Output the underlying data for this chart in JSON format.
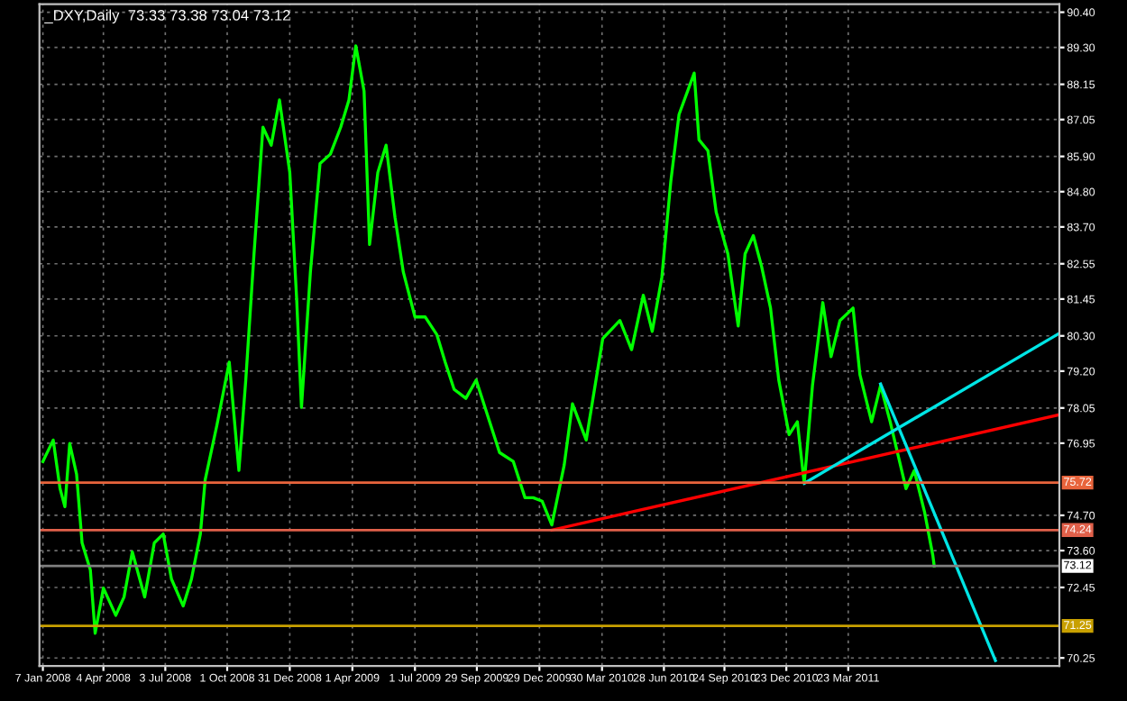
{
  "chart_data": {
    "type": "line",
    "title": "_DXY,Daily  73.33 73.38 73.04 73.12",
    "x": [
      "2008-01-07",
      "2008-01-22",
      "2008-02-01",
      "2008-02-08",
      "2008-02-15",
      "2008-02-25",
      "2008-03-04",
      "2008-03-16",
      "2008-03-23",
      "2008-04-04",
      "2008-04-22",
      "2008-05-04",
      "2008-05-16",
      "2008-06-03",
      "2008-06-17",
      "2008-06-30",
      "2008-07-12",
      "2008-07-29",
      "2008-08-10",
      "2008-08-23",
      "2008-08-30",
      "2008-09-16",
      "2008-10-04",
      "2008-10-18",
      "2008-10-28",
      "2008-11-09",
      "2008-11-22",
      "2008-12-04",
      "2008-12-16",
      "2008-12-31",
      "2009-01-10",
      "2009-01-17",
      "2009-01-30",
      "2009-02-13",
      "2009-02-28",
      "2009-03-15",
      "2009-03-27",
      "2009-04-06",
      "2009-04-18",
      "2009-04-26",
      "2009-05-08",
      "2009-05-20",
      "2009-06-02",
      "2009-06-14",
      "2009-07-01",
      "2009-07-16",
      "2009-08-02",
      "2009-08-14",
      "2009-08-27",
      "2009-09-13",
      "2009-09-28",
      "2009-10-15",
      "2009-11-01",
      "2009-11-21",
      "2009-12-08",
      "2009-12-20",
      "2010-01-02",
      "2010-01-16",
      "2010-02-03",
      "2010-02-15",
      "2010-03-07",
      "2010-03-31",
      "2010-04-25",
      "2010-05-12",
      "2010-05-29",
      "2010-06-11",
      "2010-06-25",
      "2010-07-08",
      "2010-07-20",
      "2010-08-11",
      "2010-08-18",
      "2010-08-31",
      "2010-09-12",
      "2010-09-29",
      "2010-10-14",
      "2010-10-24",
      "2010-11-05",
      "2010-11-17",
      "2010-11-30",
      "2010-12-12",
      "2010-12-27",
      "2011-01-08",
      "2011-01-18",
      "2011-01-30",
      "2011-02-14",
      "2011-02-26",
      "2011-03-11",
      "2011-03-30",
      "2011-04-09",
      "2011-04-26",
      "2011-05-09",
      "2011-05-23",
      "2011-06-15",
      "2011-06-27",
      "2011-07-12",
      "2011-07-24",
      "2011-07-26"
    ],
    "series": [
      {
        "color": "#00ff00",
        "values": [
          76.38,
          77.05,
          75.53,
          74.97,
          76.94,
          75.98,
          73.84,
          73.0,
          71.02,
          72.43,
          71.58,
          72.15,
          73.56,
          72.15,
          73.84,
          74.12,
          72.71,
          71.87,
          72.71,
          74.12,
          75.81,
          77.51,
          79.48,
          76.1,
          78.92,
          82.86,
          86.81,
          86.25,
          87.66,
          85.4,
          81.45,
          78.07,
          82.3,
          85.68,
          85.97,
          86.81,
          87.66,
          89.35,
          87.94,
          83.15,
          85.4,
          86.25,
          84.0,
          82.3,
          80.89,
          80.89,
          80.33,
          79.48,
          78.63,
          78.35,
          78.92,
          77.79,
          76.66,
          76.38,
          75.25,
          75.25,
          75.14,
          74.4,
          76.27,
          78.18,
          77.05,
          80.21,
          80.78,
          79.87,
          81.57,
          80.44,
          82.13,
          85.12,
          87.21,
          88.5,
          86.42,
          86.08,
          84.16,
          82.86,
          80.61,
          82.86,
          83.43,
          82.47,
          81.17,
          78.92,
          77.22,
          77.62,
          75.7,
          78.75,
          81.34,
          79.65,
          80.78,
          81.17,
          79.09,
          77.62,
          78.75,
          77.62,
          75.53,
          76.1,
          74.8,
          73.45,
          73.12
        ]
      },
      {
        "color": "#ff0000",
        "x": [
          "2010-01-16",
          "2012-01-24"
        ],
        "values": [
          74.24,
          77.84
        ]
      },
      {
        "color": "#00e5e5",
        "x": [
          "2011-01-18",
          "2012-01-24"
        ],
        "values": [
          75.7,
          80.38
        ]
      },
      {
        "color": "#00e5e5",
        "x": [
          "2011-05-09",
          "2011-10-23"
        ],
        "values": [
          78.8,
          70.17
        ]
      }
    ],
    "xlim": [
      "2008-01-02",
      "2012-01-24"
    ],
    "xticks": [
      {
        "value": "2008-01-07",
        "label": "7 Jan 2008"
      },
      {
        "value": "2008-04-04",
        "label": "4 Apr 2008"
      },
      {
        "value": "2008-07-03",
        "label": "3 Jul 2008"
      },
      {
        "value": "2008-10-01",
        "label": "1 Oct 2008"
      },
      {
        "value": "2008-12-31",
        "label": "31 Dec 2008"
      },
      {
        "value": "2009-04-01",
        "label": "1 Apr 2009"
      },
      {
        "value": "2009-07-01",
        "label": "1 Jul 2009"
      },
      {
        "value": "2009-09-29",
        "label": "29 Sep 2009"
      },
      {
        "value": "2009-12-29",
        "label": "29 Dec 2009"
      },
      {
        "value": "2010-03-30",
        "label": "30 Mar 2010"
      },
      {
        "value": "2010-06-28",
        "label": "28 Jun 2010"
      },
      {
        "value": "2010-09-24",
        "label": "24 Sep 2010"
      },
      {
        "value": "2010-12-23",
        "label": "23 Dec 2010"
      },
      {
        "value": "2011-03-23",
        "label": "23 Mar 2011"
      }
    ],
    "ylim": [
      70.0,
      90.65
    ],
    "yticks": [
      {
        "value": 90.4,
        "label": "90.40"
      },
      {
        "value": 89.3,
        "label": "89.30"
      },
      {
        "value": 88.15,
        "label": "88.15"
      },
      {
        "value": 87.05,
        "label": "87.05"
      },
      {
        "value": 85.9,
        "label": "85.90"
      },
      {
        "value": 84.8,
        "label": "84.80"
      },
      {
        "value": 83.7,
        "label": "83.70"
      },
      {
        "value": 82.55,
        "label": "82.55"
      },
      {
        "value": 81.45,
        "label": "81.45"
      },
      {
        "value": 80.3,
        "label": "80.30"
      },
      {
        "value": 79.2,
        "label": "79.20"
      },
      {
        "value": 78.05,
        "label": "78.05"
      },
      {
        "value": 76.95,
        "label": "76.95"
      },
      {
        "value": 74.7,
        "label": "74.70"
      },
      {
        "value": 73.6,
        "label": "73.60"
      },
      {
        "value": 72.45,
        "label": "72.45"
      },
      {
        "value": 70.25,
        "label": "70.25"
      }
    ],
    "ref_lines": [
      {
        "axis": "y",
        "value": 75.72,
        "label": "75.72",
        "color": "#e8643c"
      },
      {
        "axis": "y",
        "value": 74.24,
        "label": "74.24",
        "color": "#e0604a"
      },
      {
        "axis": "y",
        "value": 73.12,
        "label": "73.12",
        "color": "#808080"
      },
      {
        "axis": "y",
        "value": 71.25,
        "label": "71.25",
        "color": "#c8a000"
      }
    ],
    "grid": true
  }
}
